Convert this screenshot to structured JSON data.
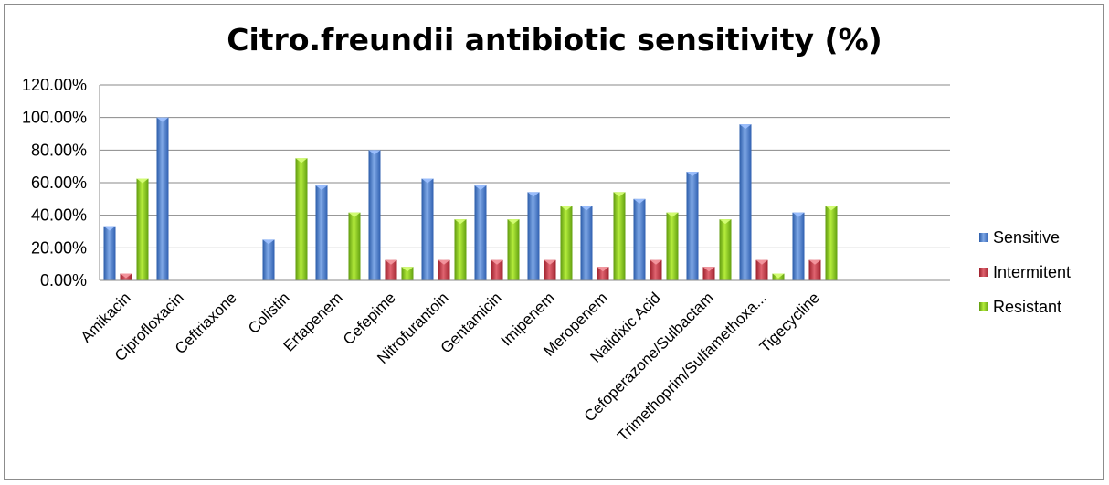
{
  "chart_data": {
    "type": "bar",
    "title": "Citro.freundii antibiotic sensitivity (%)",
    "categories": [
      "Amikacin",
      "Ciprofloxacin",
      "Ceftriaxone",
      "Colistin",
      "Ertapenem",
      "Cefepime",
      "Nitrofurantoin",
      "Gentamicin",
      "Imipenem",
      "Meropenem",
      "Nalidixic Acid",
      "Cefoperazone/Sulbactam",
      "Trimethoprim/Sulfamethoxa...",
      "Tigecycline"
    ],
    "series": [
      {
        "name": "Sensitive",
        "color": "#4f81bd",
        "values": [
          33.3,
          100,
          null,
          25,
          58.3,
          80,
          62.5,
          58.3,
          54.2,
          45.8,
          50,
          66.7,
          95.8,
          41.7
        ]
      },
      {
        "name": "Intermitent",
        "color": "#c0504d",
        "values": [
          4.2,
          null,
          null,
          null,
          null,
          12.5,
          12.5,
          12.5,
          12.5,
          8.3,
          12.5,
          8.3,
          12.5,
          12.5
        ]
      },
      {
        "name": "Resistant",
        "color": "#9bbb59",
        "values": [
          62.5,
          null,
          null,
          75,
          41.7,
          8.3,
          37.5,
          37.5,
          45.8,
          54.2,
          41.7,
          37.5,
          4.2,
          45.8
        ]
      }
    ],
    "yticks": [
      "0.00%",
      "20.00%",
      "40.00%",
      "60.00%",
      "80.00%",
      "100.00%",
      "120.00%"
    ],
    "ylim": [
      0,
      120
    ],
    "grid": true,
    "legend": "right"
  }
}
